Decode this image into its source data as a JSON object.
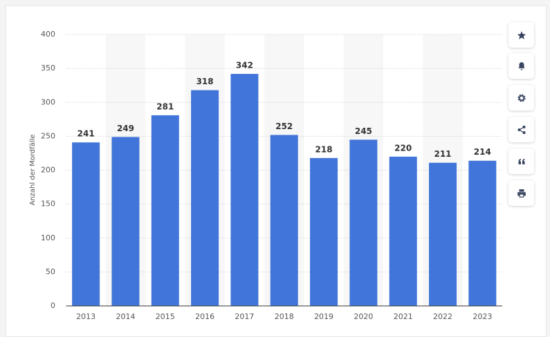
{
  "chart_data": {
    "type": "bar",
    "y_label": "Anzahl der Mordfälle",
    "categories": [
      "2013",
      "2014",
      "2015",
      "2016",
      "2017",
      "2018",
      "2019",
      "2020",
      "2021",
      "2022",
      "2023"
    ],
    "values": [
      241,
      249,
      281,
      318,
      342,
      252,
      218,
      245,
      220,
      211,
      214
    ],
    "color": "#4275d9",
    "ylim": [
      0,
      400
    ],
    "yticks": [
      0,
      50,
      100,
      150,
      200,
      250,
      300,
      350,
      400
    ],
    "grid": true
  }
}
